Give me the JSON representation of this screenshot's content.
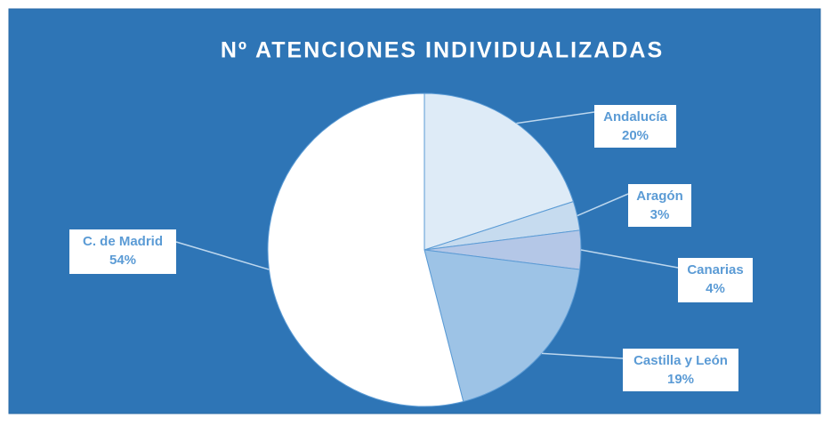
{
  "chart_data": {
    "type": "pie",
    "title": "Nº ATENCIONES INDIVIDUALIZADAS",
    "categories": [
      "Andalucía",
      "Aragón",
      "Canarias",
      "Castilla y León",
      "C. de Madrid"
    ],
    "values": [
      20,
      3,
      4,
      19,
      54
    ],
    "value_labels": [
      "20%",
      "3%",
      "4%",
      "19%",
      "54%"
    ],
    "colors": [
      "#deebf7",
      "#c6dbef",
      "#b4c7e7",
      "#9dc3e6",
      "#ffffff"
    ]
  }
}
